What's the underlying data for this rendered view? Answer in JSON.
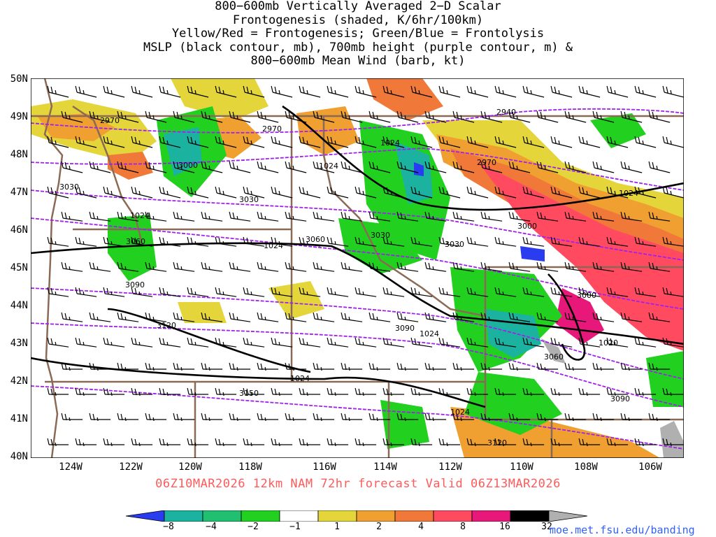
{
  "title_lines": [
    "800−600mb Vertically Averaged 2−D Scalar",
    "Frontogenesis (shaded, K/6hr/100km)",
    "Yellow/Red = Frontogenesis;  Green/Blue = Frontolysis",
    "MSLP (black contour, mb), 700mb height (purple contour, m) &",
    "800−600mb Mean Wind (barb, kt)"
  ],
  "lat_labels": [
    "50N",
    "49N",
    "48N",
    "47N",
    "46N",
    "45N",
    "44N",
    "43N",
    "42N",
    "41N",
    "40N"
  ],
  "lon_labels": [
    "124W",
    "122W",
    "120W",
    "118W",
    "116W",
    "114W",
    "112W",
    "110W",
    "108W",
    "106W"
  ],
  "valid_line": "06Z10MAR2026 12km NAM 72hr forecast Valid 06Z13MAR2026",
  "colorbar": {
    "labels": [
      "−8",
      "−4",
      "−2",
      "−1",
      "1",
      "2",
      "4",
      "8",
      "16",
      "32"
    ],
    "colors": [
      "#2a3cf0",
      "#1bb3a0",
      "#20c070",
      "#22d020",
      "#ffffff",
      "#e4d63a",
      "#f0a030",
      "#f07838",
      "#ff4a60",
      "#e8187a",
      "#000000",
      "#b0b0b0"
    ]
  },
  "height_contour_labels": [
    "2970",
    "2970",
    "2940",
    "2970",
    "3000",
    "3000",
    "3000",
    "3030",
    "3030",
    "3030",
    "3030",
    "3060",
    "3060",
    "3060",
    "3090",
    "3090",
    "3090",
    "3120",
    "3120",
    "3150"
  ],
  "mslp_contour_labels": [
    "1024",
    "1024",
    "1024",
    "1024",
    "1024",
    "1024",
    "1024",
    "1024",
    "1020"
  ],
  "credit": "moe.met.fsu.edu/banding",
  "colors": {
    "valid_line": "#ff5a5a",
    "credit": "#3060ff",
    "height_contour": "#a020f0",
    "mslp_contour": "#000000",
    "state_border": "#8b6a55"
  }
}
